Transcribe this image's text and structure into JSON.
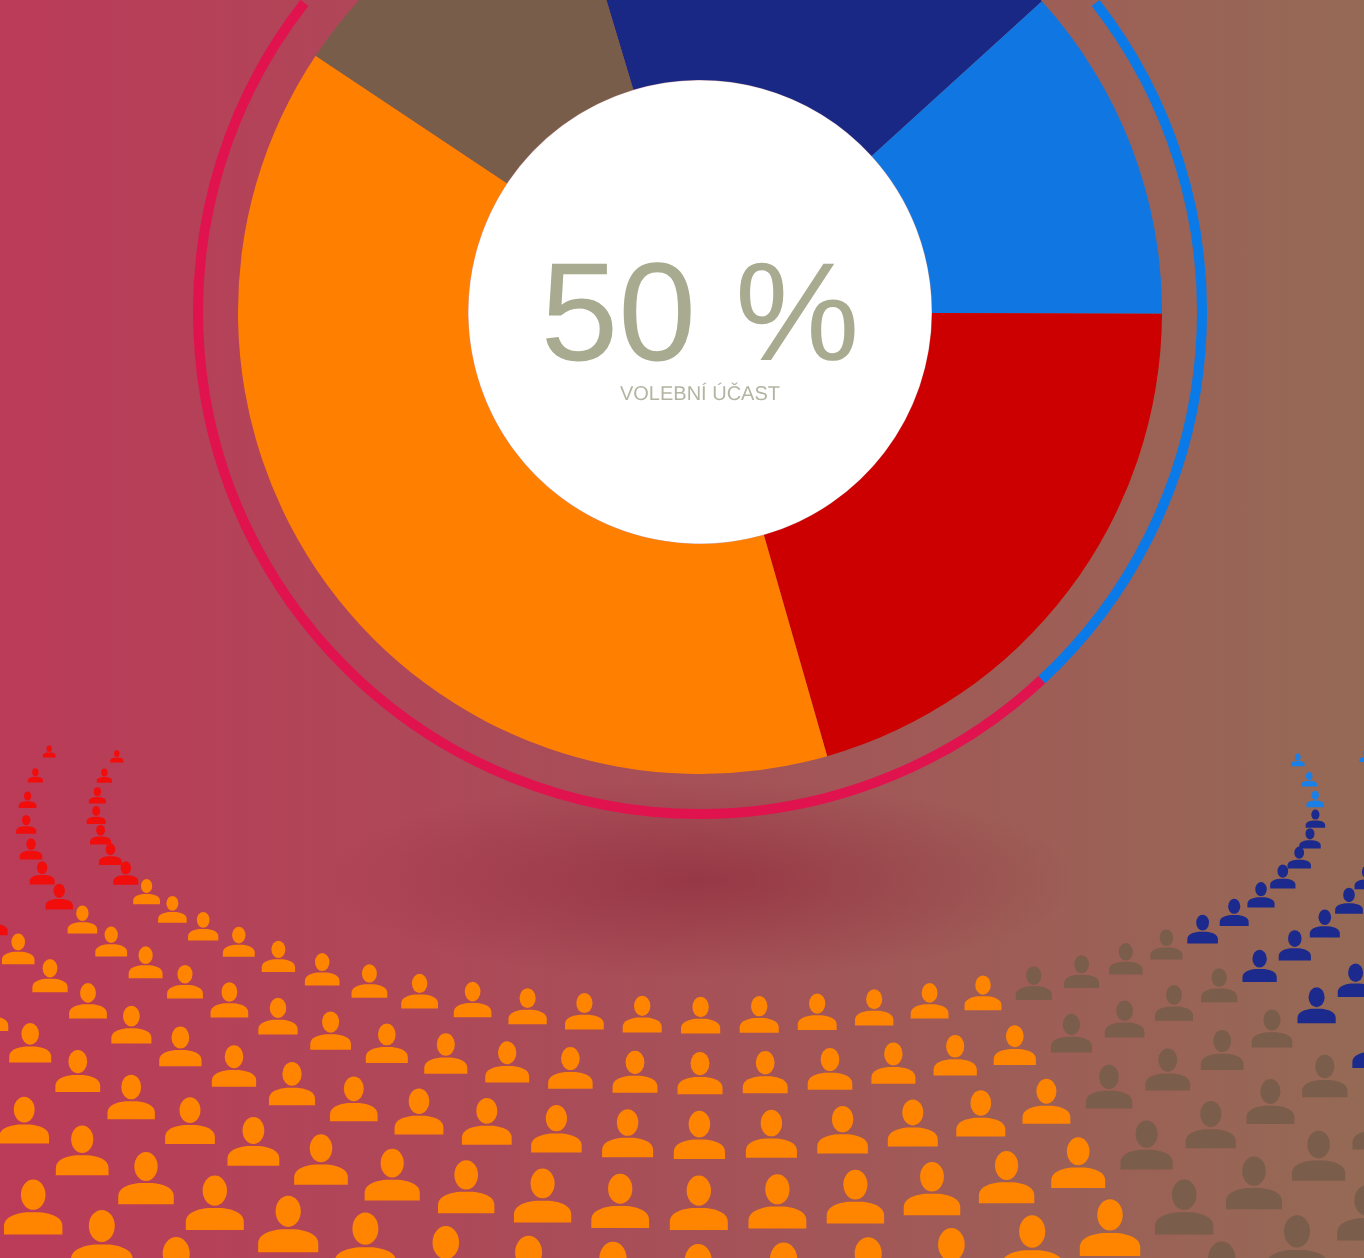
{
  "chart_data": {
    "type": "donut",
    "categories": [
      null,
      null,
      null,
      null,
      null
    ],
    "values": [
      17.9,
      11.8,
      20.5,
      38.8,
      11.0
    ],
    "colors": [
      "#182884",
      "#1077e2",
      "#cc0000",
      "#ff8000",
      "#785e4a"
    ],
    "annotations": [
      "50 %",
      "VOLEBNÍ ÚČAST"
    ]
  }
}
